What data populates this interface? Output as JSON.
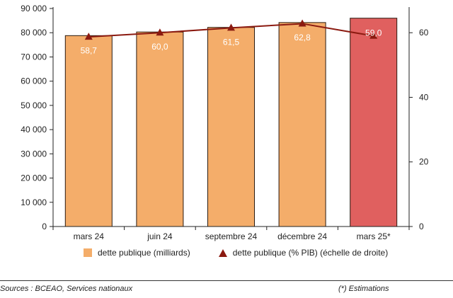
{
  "chart_data": {
    "type": "bar",
    "categories": [
      "mars 24",
      "juin 24",
      "septembre 24",
      "décembre 24",
      "mars 25*"
    ],
    "series": [
      {
        "name": "dette publique (milliards)",
        "type": "bar",
        "axis": "left",
        "values": [
          78800,
          80300,
          82200,
          84200,
          86000
        ],
        "colors": [
          "#f4ad6a",
          "#f4ad6a",
          "#f4ad6a",
          "#f4ad6a",
          "#e0605f"
        ]
      },
      {
        "name": "dette publique (% PIB) (échelle de droite)",
        "type": "line",
        "axis": "right",
        "values": [
          58.7,
          60.0,
          61.5,
          62.8,
          59.0
        ],
        "labels": [
          "58,7",
          "60,0",
          "61,5",
          "62,8",
          "59,0"
        ],
        "color": "#8b1a10"
      }
    ],
    "y_left": {
      "ylim": [
        0,
        90000
      ],
      "ticks": [
        "0",
        "10 000",
        "20 000",
        "30 000",
        "40 000",
        "50 000",
        "60 000",
        "70 000",
        "80 000",
        "90 000"
      ]
    },
    "y_right": {
      "ylim": [
        0,
        67.5
      ],
      "ticks": [
        "0",
        "20",
        "40",
        "60"
      ]
    },
    "legend_position": "bottom",
    "grid": false
  },
  "footer": {
    "source": "Sources : BCEAO, Services nationaux",
    "note": "(*) Estimations"
  }
}
